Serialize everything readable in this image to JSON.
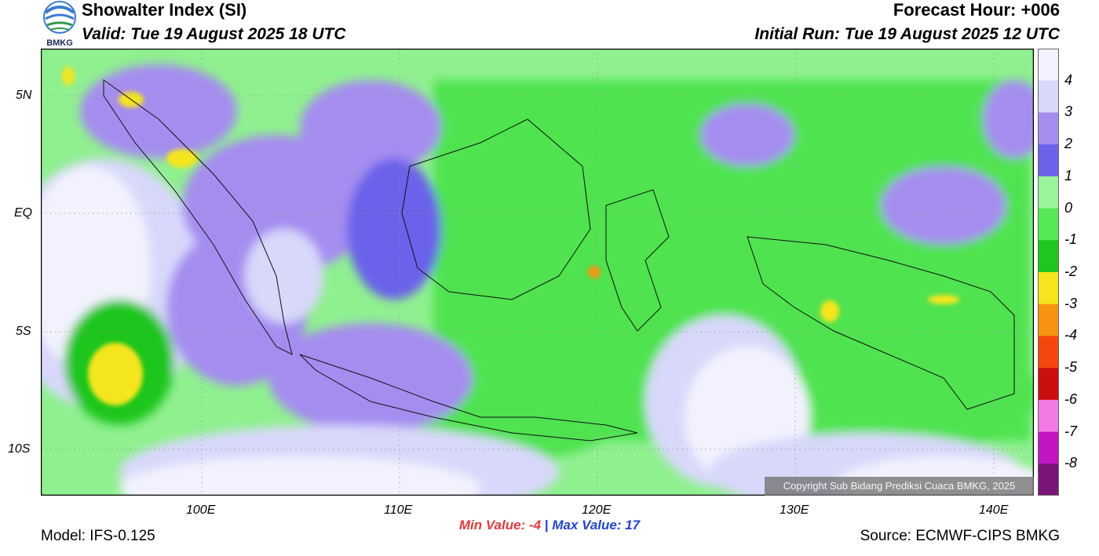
{
  "header": {
    "title": "Showalter Index (SI)",
    "valid": "Valid: Tue 19 August 2025 18 UTC",
    "forecast_hour": "Forecast Hour: +006",
    "initial_run": "Initial Run: Tue 19 August 2025 12 UTC",
    "logo_text": "BMKG"
  },
  "axes": {
    "lat_labels": [
      "5N",
      "EQ",
      "5S",
      "10S"
    ],
    "lon_labels": [
      "100E",
      "110E",
      "120E",
      "130E",
      "140E"
    ]
  },
  "stats": {
    "min_value": "Min Value:  -4",
    "separator": "|",
    "max_value": "Max Value:  17"
  },
  "footer": {
    "model": "Model: IFS-0.125",
    "source": "Source: ECMWF-CIPS BMKG",
    "copyright": "Copyright Sub Bidang Prediksi Cuaca BMKG, 2025"
  },
  "legend": {
    "labels": [
      "4",
      "3",
      "2",
      "1",
      "0",
      "-1",
      "-2",
      "-3",
      "-4",
      "-5",
      "-6",
      "-7",
      "-8"
    ],
    "colors": [
      "#f2f2fe",
      "#d8d8fa",
      "#a58df0",
      "#6a62ea",
      "#9af59a",
      "#55e855",
      "#1ec61e",
      "#f5e51a",
      "#f7930f",
      "#f5470c",
      "#cc0e0e",
      "#f37ae3",
      "#c415c4",
      "#7a157a"
    ]
  }
}
